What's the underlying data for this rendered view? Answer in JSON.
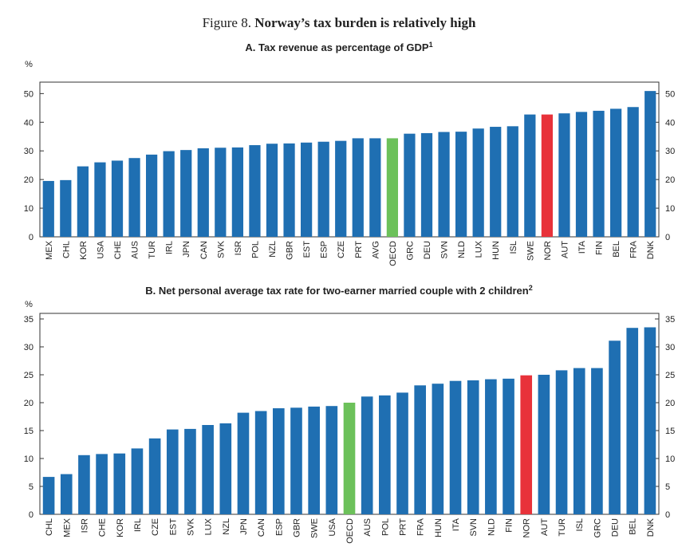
{
  "header": {
    "figure": "Figure 8.",
    "title": "Norway’s tax burden is relatively high"
  },
  "chart_data": [
    {
      "type": "bar",
      "title": "A. Tax revenue as percentage of GDP",
      "title_note": "1",
      "ylabel": "%",
      "categories": [
        "MEX",
        "CHL",
        "KOR",
        "USA",
        "CHE",
        "AUS",
        "TUR",
        "IRL",
        "JPN",
        "CAN",
        "SVK",
        "ISR",
        "POL",
        "NZL",
        "GBR",
        "EST",
        "ESP",
        "CZE",
        "PRT",
        "AVG",
        "OECD",
        "GRC",
        "DEU",
        "SVN",
        "NLD",
        "LUX",
        "HUN",
        "ISL",
        "SWE",
        "NOR",
        "AUT",
        "ITA",
        "FIN",
        "BEL",
        "FRA",
        "DNK"
      ],
      "values": [
        19.5,
        19.8,
        24.6,
        26,
        26.6,
        27.5,
        28.7,
        29.9,
        30.3,
        30.9,
        31.1,
        31.2,
        32,
        32.5,
        32.6,
        32.9,
        33.2,
        33.5,
        34.4,
        34.4,
        34.4,
        36,
        36.2,
        36.6,
        36.7,
        37.8,
        38.4,
        38.6,
        42.7,
        42.7,
        43.1,
        43.6,
        44,
        44.7,
        45.3,
        50.9
      ],
      "colors": [
        "#1f6fb2",
        "#1f6fb2",
        "#1f6fb2",
        "#1f6fb2",
        "#1f6fb2",
        "#1f6fb2",
        "#1f6fb2",
        "#1f6fb2",
        "#1f6fb2",
        "#1f6fb2",
        "#1f6fb2",
        "#1f6fb2",
        "#1f6fb2",
        "#1f6fb2",
        "#1f6fb2",
        "#1f6fb2",
        "#1f6fb2",
        "#1f6fb2",
        "#1f6fb2",
        "#1f6fb2",
        "#6cc15a",
        "#1f6fb2",
        "#1f6fb2",
        "#1f6fb2",
        "#1f6fb2",
        "#1f6fb2",
        "#1f6fb2",
        "#1f6fb2",
        "#1f6fb2",
        "#e8323a",
        "#1f6fb2",
        "#1f6fb2",
        "#1f6fb2",
        "#1f6fb2",
        "#1f6fb2",
        "#1f6fb2"
      ],
      "ylim": [
        0,
        54
      ],
      "yticks": [
        0,
        10,
        20,
        30,
        40,
        50
      ]
    },
    {
      "type": "bar",
      "title": "B. Net personal average tax rate for two-earner married couple with 2 children",
      "title_note": "2",
      "ylabel": "%",
      "categories": [
        "CHL",
        "MEX",
        "ISR",
        "CHE",
        "KOR",
        "IRL",
        "CZE",
        "EST",
        "SVK",
        "LUX",
        "NZL",
        "JPN",
        "CAN",
        "ESP",
        "GBR",
        "SWE",
        "USA",
        "OECD",
        "AUS",
        "POL",
        "PRT",
        "FRA",
        "HUN",
        "ITA",
        "SVN",
        "NLD",
        "FIN",
        "NOR",
        "AUT",
        "TUR",
        "ISL",
        "GRC",
        "DEU",
        "BEL",
        "DNK"
      ],
      "values": [
        6.7,
        7.2,
        10.6,
        10.8,
        10.9,
        11.8,
        13.6,
        15.2,
        15.3,
        16,
        16.3,
        18.2,
        18.5,
        19,
        19.1,
        19.3,
        19.4,
        20,
        21.1,
        21.3,
        21.8,
        23.1,
        23.4,
        23.9,
        24,
        24.2,
        24.3,
        24.9,
        25,
        25.8,
        26.2,
        26.2,
        31.1,
        33.4,
        33.5
      ],
      "colors": [
        "#1f6fb2",
        "#1f6fb2",
        "#1f6fb2",
        "#1f6fb2",
        "#1f6fb2",
        "#1f6fb2",
        "#1f6fb2",
        "#1f6fb2",
        "#1f6fb2",
        "#1f6fb2",
        "#1f6fb2",
        "#1f6fb2",
        "#1f6fb2",
        "#1f6fb2",
        "#1f6fb2",
        "#1f6fb2",
        "#1f6fb2",
        "#6cc15a",
        "#1f6fb2",
        "#1f6fb2",
        "#1f6fb2",
        "#1f6fb2",
        "#1f6fb2",
        "#1f6fb2",
        "#1f6fb2",
        "#1f6fb2",
        "#1f6fb2",
        "#e8323a",
        "#1f6fb2",
        "#1f6fb2",
        "#1f6fb2",
        "#1f6fb2",
        "#1f6fb2",
        "#1f6fb2",
        "#1f6fb2"
      ],
      "ylim": [
        0,
        36
      ],
      "yticks": [
        0,
        5,
        10,
        15,
        20,
        25,
        30,
        35
      ]
    }
  ]
}
